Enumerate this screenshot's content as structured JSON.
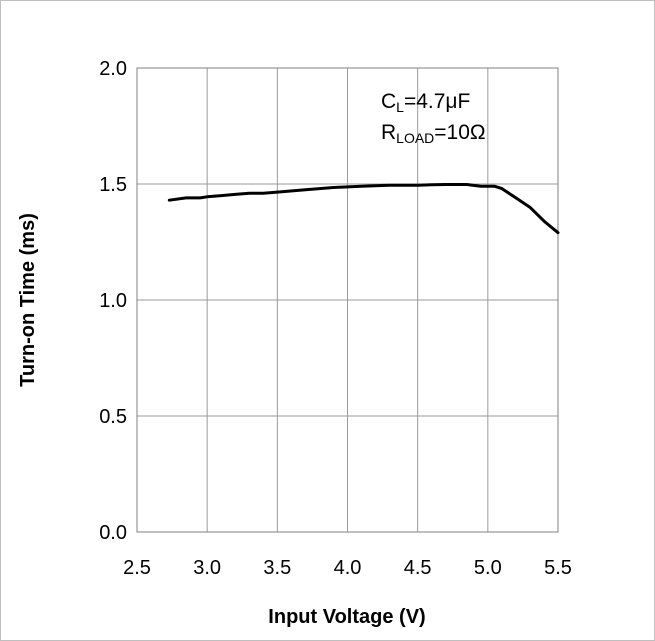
{
  "chart_data": {
    "type": "line",
    "xlabel": "Input Voltage (V)",
    "ylabel": "Turn-on Time (ms)",
    "xlim": [
      2.5,
      5.5
    ],
    "ylim": [
      0.0,
      2.0
    ],
    "xticks": [
      "2.5",
      "3.0",
      "3.5",
      "4.0",
      "4.5",
      "5.0",
      "5.5"
    ],
    "yticks": [
      "0.0",
      "0.5",
      "1.0",
      "1.5",
      "2.0"
    ],
    "grid": true,
    "annotations": [
      {
        "lines": [
          {
            "main": "C",
            "sub": "L",
            "rest": "=4.7μF"
          },
          {
            "main": "R",
            "sub": "LOAD",
            "rest": "=10Ω"
          }
        ]
      }
    ],
    "series": [
      {
        "color": "#000000",
        "x": [
          2.73,
          2.85,
          2.95,
          3.0,
          3.1,
          3.2,
          3.3,
          3.4,
          3.5,
          3.7,
          3.9,
          4.1,
          4.3,
          4.5,
          4.6,
          4.7,
          4.85,
          4.95,
          5.05,
          5.1,
          5.15,
          5.2,
          5.3,
          5.4,
          5.5
        ],
        "y": [
          1.43,
          1.44,
          1.44,
          1.445,
          1.45,
          1.455,
          1.46,
          1.46,
          1.465,
          1.475,
          1.485,
          1.49,
          1.495,
          1.495,
          1.497,
          1.498,
          1.498,
          1.49,
          1.49,
          1.48,
          1.46,
          1.44,
          1.4,
          1.34,
          1.29
        ]
      }
    ]
  }
}
